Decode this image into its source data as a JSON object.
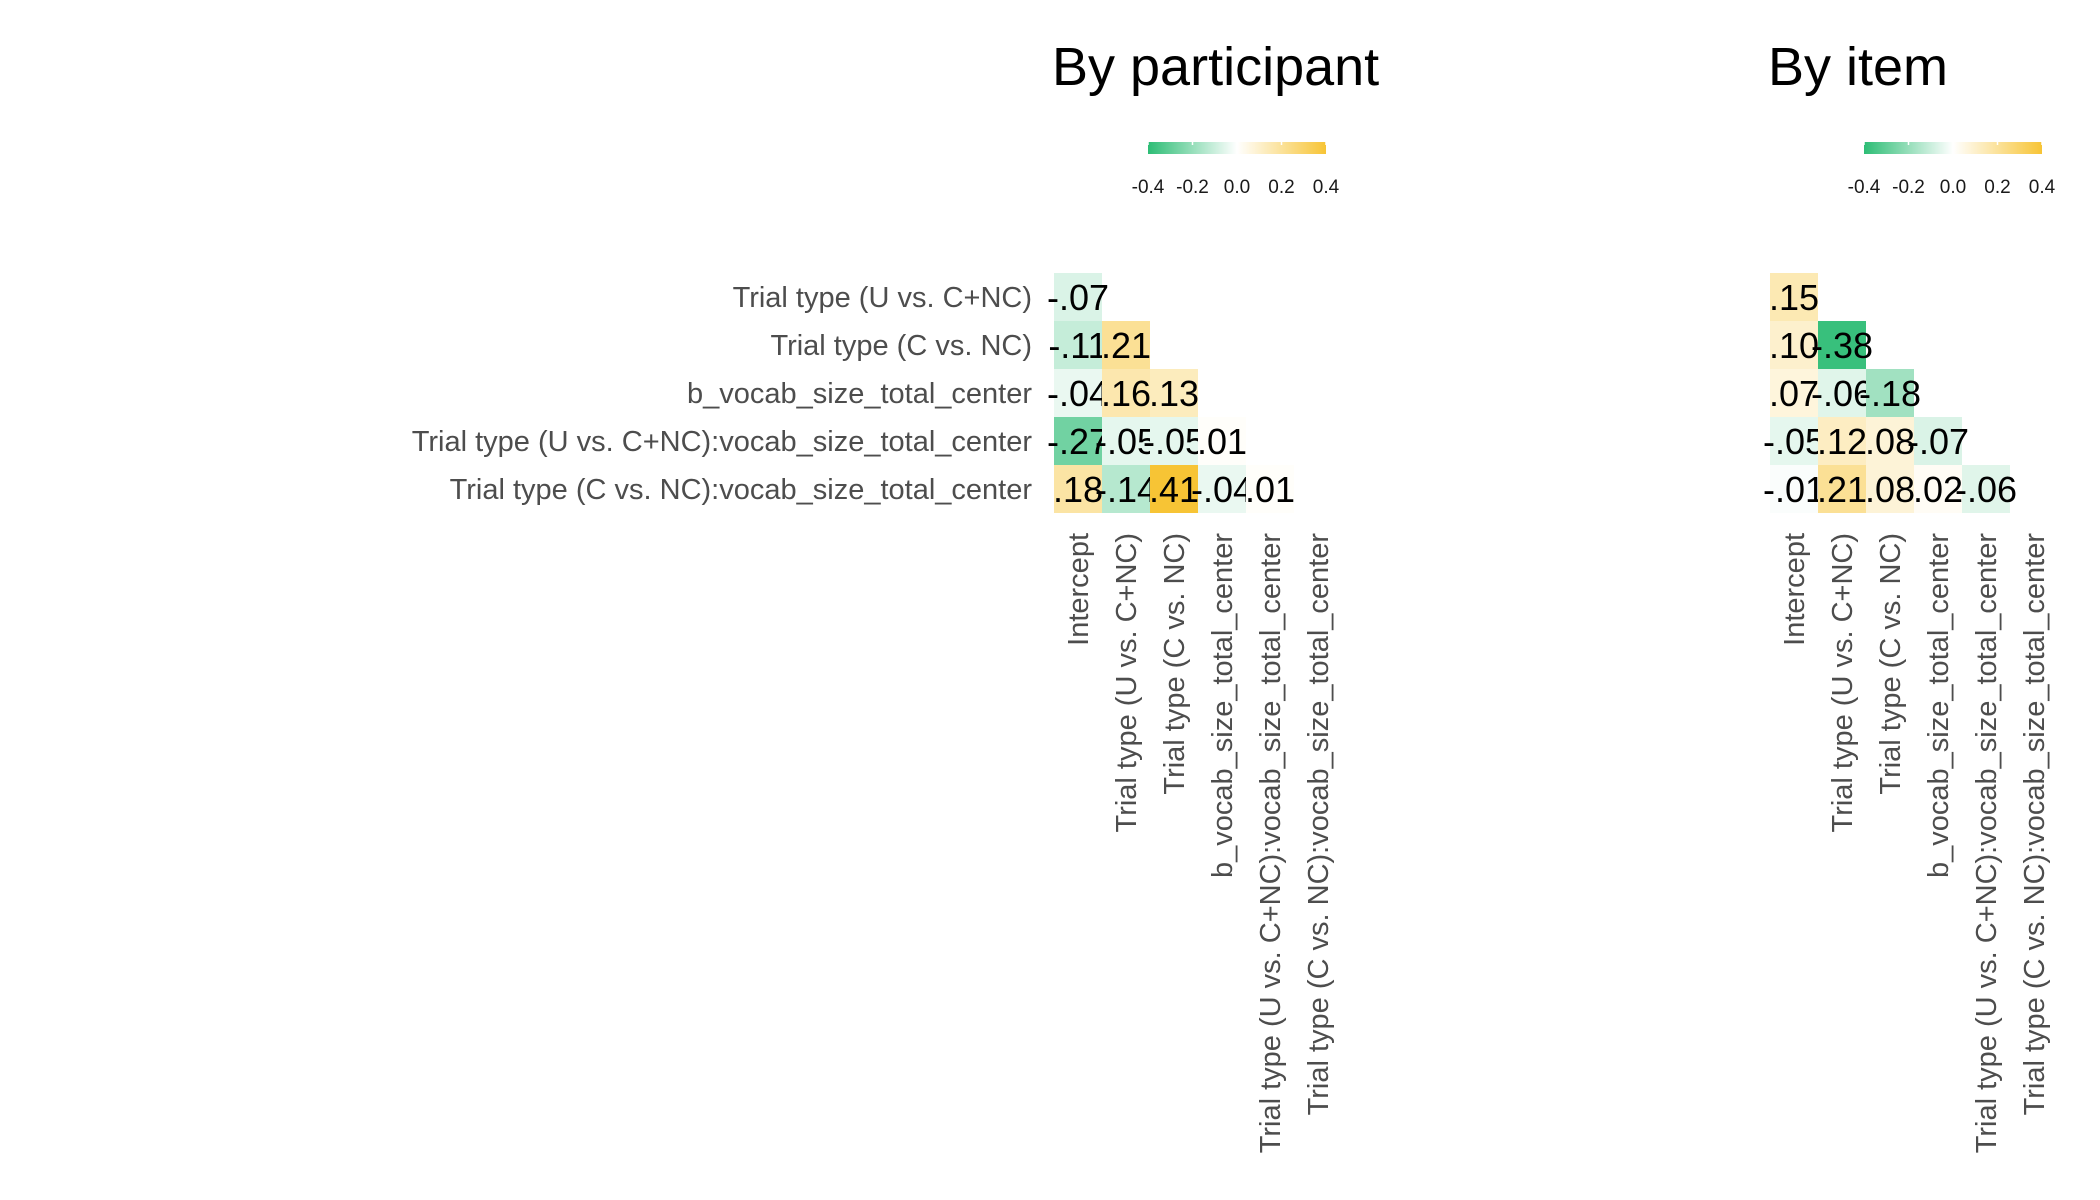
{
  "chart_data": {
    "type": "heatmap",
    "panels": [
      {
        "title": "By participant",
        "row_labels": [
          "Trial type (U vs. C+NC)",
          "Trial type (C vs. NC)",
          "b_vocab_size_total_center",
          "Trial type (U vs. C+NC):vocab_size_total_center",
          "Trial type (C vs. NC):vocab_size_total_center"
        ],
        "col_labels": [
          "Intercept",
          "Trial type (U vs. C+NC)",
          "Trial type (C vs. NC)",
          "b_vocab_size_total_center",
          "Trial type (U vs. C+NC):vocab_size_total_center",
          "Trial type (C vs. NC):vocab_size_total_center"
        ],
        "cells": [
          [
            -0.07
          ],
          [
            -0.11,
            0.21
          ],
          [
            -0.04,
            0.16,
            0.13
          ],
          [
            -0.27,
            -0.05,
            -0.05,
            0.01
          ],
          [
            0.18,
            -0.14,
            0.41,
            -0.04,
            0.01
          ]
        ],
        "cell_labels": [
          [
            "-.07"
          ],
          [
            "-.11",
            ".21"
          ],
          [
            "-.04",
            ".16",
            ".13"
          ],
          [
            "-.27",
            "-.05",
            "-.05",
            ".01"
          ],
          [
            ".18",
            "-.14",
            ".41",
            "-.04",
            ".01"
          ]
        ]
      },
      {
        "title": "By item",
        "row_labels": [],
        "col_labels": [
          "Intercept",
          "Trial type (U vs. C+NC)",
          "Trial type (C vs. NC)",
          "b_vocab_size_total_center",
          "Trial type (U vs. C+NC):vocab_size_total_center",
          "Trial type (C vs. NC):vocab_size_total_center"
        ],
        "cells": [
          [
            0.15
          ],
          [
            0.1,
            -0.38
          ],
          [
            0.07,
            -0.06,
            -0.18
          ],
          [
            -0.05,
            0.12,
            0.08,
            -0.07
          ],
          [
            -0.01,
            0.21,
            0.08,
            0.02,
            -0.06
          ]
        ],
        "cell_labels": [
          [
            ".15"
          ],
          [
            ".10",
            "-.38"
          ],
          [
            ".07",
            "-.06",
            "-.18"
          ],
          [
            "-.05",
            ".12",
            ".08",
            "-.07"
          ],
          [
            "-.01",
            ".21",
            ".08",
            ".02",
            "-.06"
          ]
        ]
      }
    ],
    "legend": {
      "placement": "top",
      "range": [
        -0.4,
        0.4
      ],
      "ticks": [
        "-0.4",
        "-0.2",
        "0.0",
        "0.2",
        "0.4"
      ]
    },
    "colors": {
      "low": "#2dbd75",
      "mid": "#ffffff",
      "high": "#f7c435"
    },
    "grid": false
  }
}
